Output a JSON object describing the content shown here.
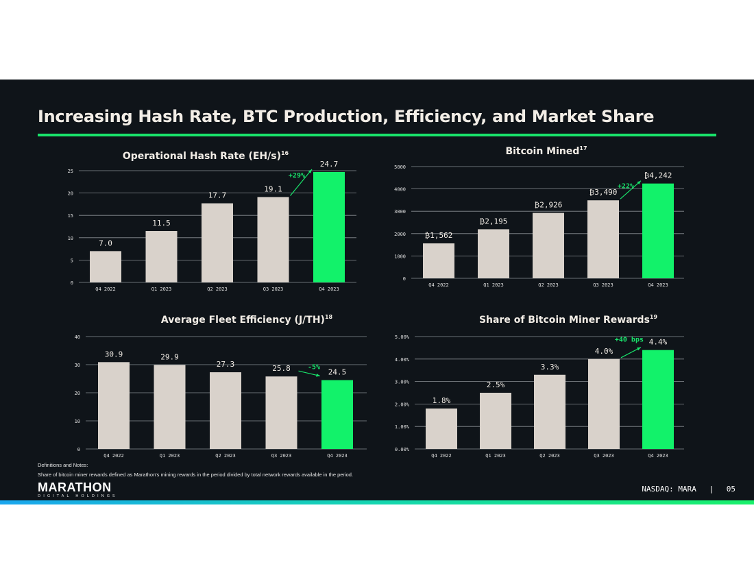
{
  "header": {
    "title": "Increasing Hash Rate, BTC Production, Efficiency, and Market Share"
  },
  "notes": {
    "heading": "Definitions and Notes:",
    "text": "Share of bitcoin miner rewards defined as Marathon's mining rewards in the period divided by total network rewards available in the period."
  },
  "logo": {
    "main": "MARATHON",
    "sub": "DIGITAL HOLDINGS"
  },
  "footer": {
    "ticker": "NASDAQ: MARA",
    "separator": "|",
    "page": "05"
  },
  "colors": {
    "bar": "#d9d2cb",
    "highlight": "#12f26a",
    "background": "#0f1419",
    "annotation": "#19e36b"
  },
  "chart_data": [
    {
      "type": "bar",
      "title": "Operational Hash Rate (EH/s)",
      "title_sup": "16",
      "categories": [
        "Q4 2022",
        "Q1 2023",
        "Q2 2023",
        "Q3 2023",
        "Q4 2023"
      ],
      "values": [
        7.0,
        11.5,
        17.7,
        19.1,
        24.7
      ],
      "labels": [
        "7.0",
        "11.5",
        "17.7",
        "19.1",
        "24.7"
      ],
      "ylim": [
        0,
        25
      ],
      "yticks": [
        "0",
        "5",
        "10",
        "15",
        "20",
        "25"
      ],
      "ytick_values": [
        0,
        5,
        10,
        15,
        20,
        25
      ],
      "annotation": {
        "text": "+29%",
        "from": 3,
        "to": 4
      },
      "grid": true
    },
    {
      "type": "bar",
      "title": "Bitcoin Mined",
      "title_sup": "17",
      "categories": [
        "Q4 2022",
        "Q1 2023",
        "Q2 2023",
        "Q3 2023",
        "Q4 2023"
      ],
      "values": [
        1562,
        2195,
        2926,
        3490,
        4242
      ],
      "labels": [
        "₿1,562",
        "₿2,195",
        "₿2,926",
        "₿3,490",
        "₿4,242"
      ],
      "ylim": [
        0,
        5000
      ],
      "yticks": [
        "0",
        "1000",
        "2000",
        "3000",
        "4000",
        "5000"
      ],
      "ytick_values": [
        0,
        1000,
        2000,
        3000,
        4000,
        5000
      ],
      "annotation": {
        "text": "+22%",
        "from": 3,
        "to": 4
      },
      "grid": true
    },
    {
      "type": "bar",
      "title": "Average Fleet Efficiency (J/TH)",
      "title_sup": "18",
      "categories": [
        "Q4 2022",
        "Q1 2023",
        "Q2 2023",
        "Q3 2023",
        "Q4 2023"
      ],
      "values": [
        30.9,
        29.9,
        27.3,
        25.8,
        24.5
      ],
      "labels": [
        "30.9",
        "29.9",
        "27.3",
        "25.8",
        "24.5"
      ],
      "ylim": [
        0,
        40
      ],
      "yticks": [
        "0",
        "10",
        "20",
        "30",
        "40"
      ],
      "ytick_values": [
        0,
        10,
        20,
        30,
        40
      ],
      "annotation": {
        "text": "-5%",
        "from": 3,
        "to": 4
      },
      "grid": true
    },
    {
      "type": "bar",
      "title": "Share of Bitcoin Miner Rewards",
      "title_sup": "19",
      "categories": [
        "Q4 2022",
        "Q1 2023",
        "Q2 2023",
        "Q3 2023",
        "Q4 2023"
      ],
      "values": [
        1.8,
        2.5,
        3.3,
        4.0,
        4.4
      ],
      "labels": [
        "1.8%",
        "2.5%",
        "3.3%",
        "4.0%",
        "4.4%"
      ],
      "ylim": [
        0,
        5
      ],
      "yticks": [
        "0.00%",
        "1.00%",
        "2.00%",
        "3.00%",
        "4.00%",
        "5.00%"
      ],
      "ytick_values": [
        0,
        1,
        2,
        3,
        4,
        5
      ],
      "annotation": {
        "text": "+40 bps",
        "from": 3,
        "to": 4
      },
      "grid": true
    }
  ]
}
